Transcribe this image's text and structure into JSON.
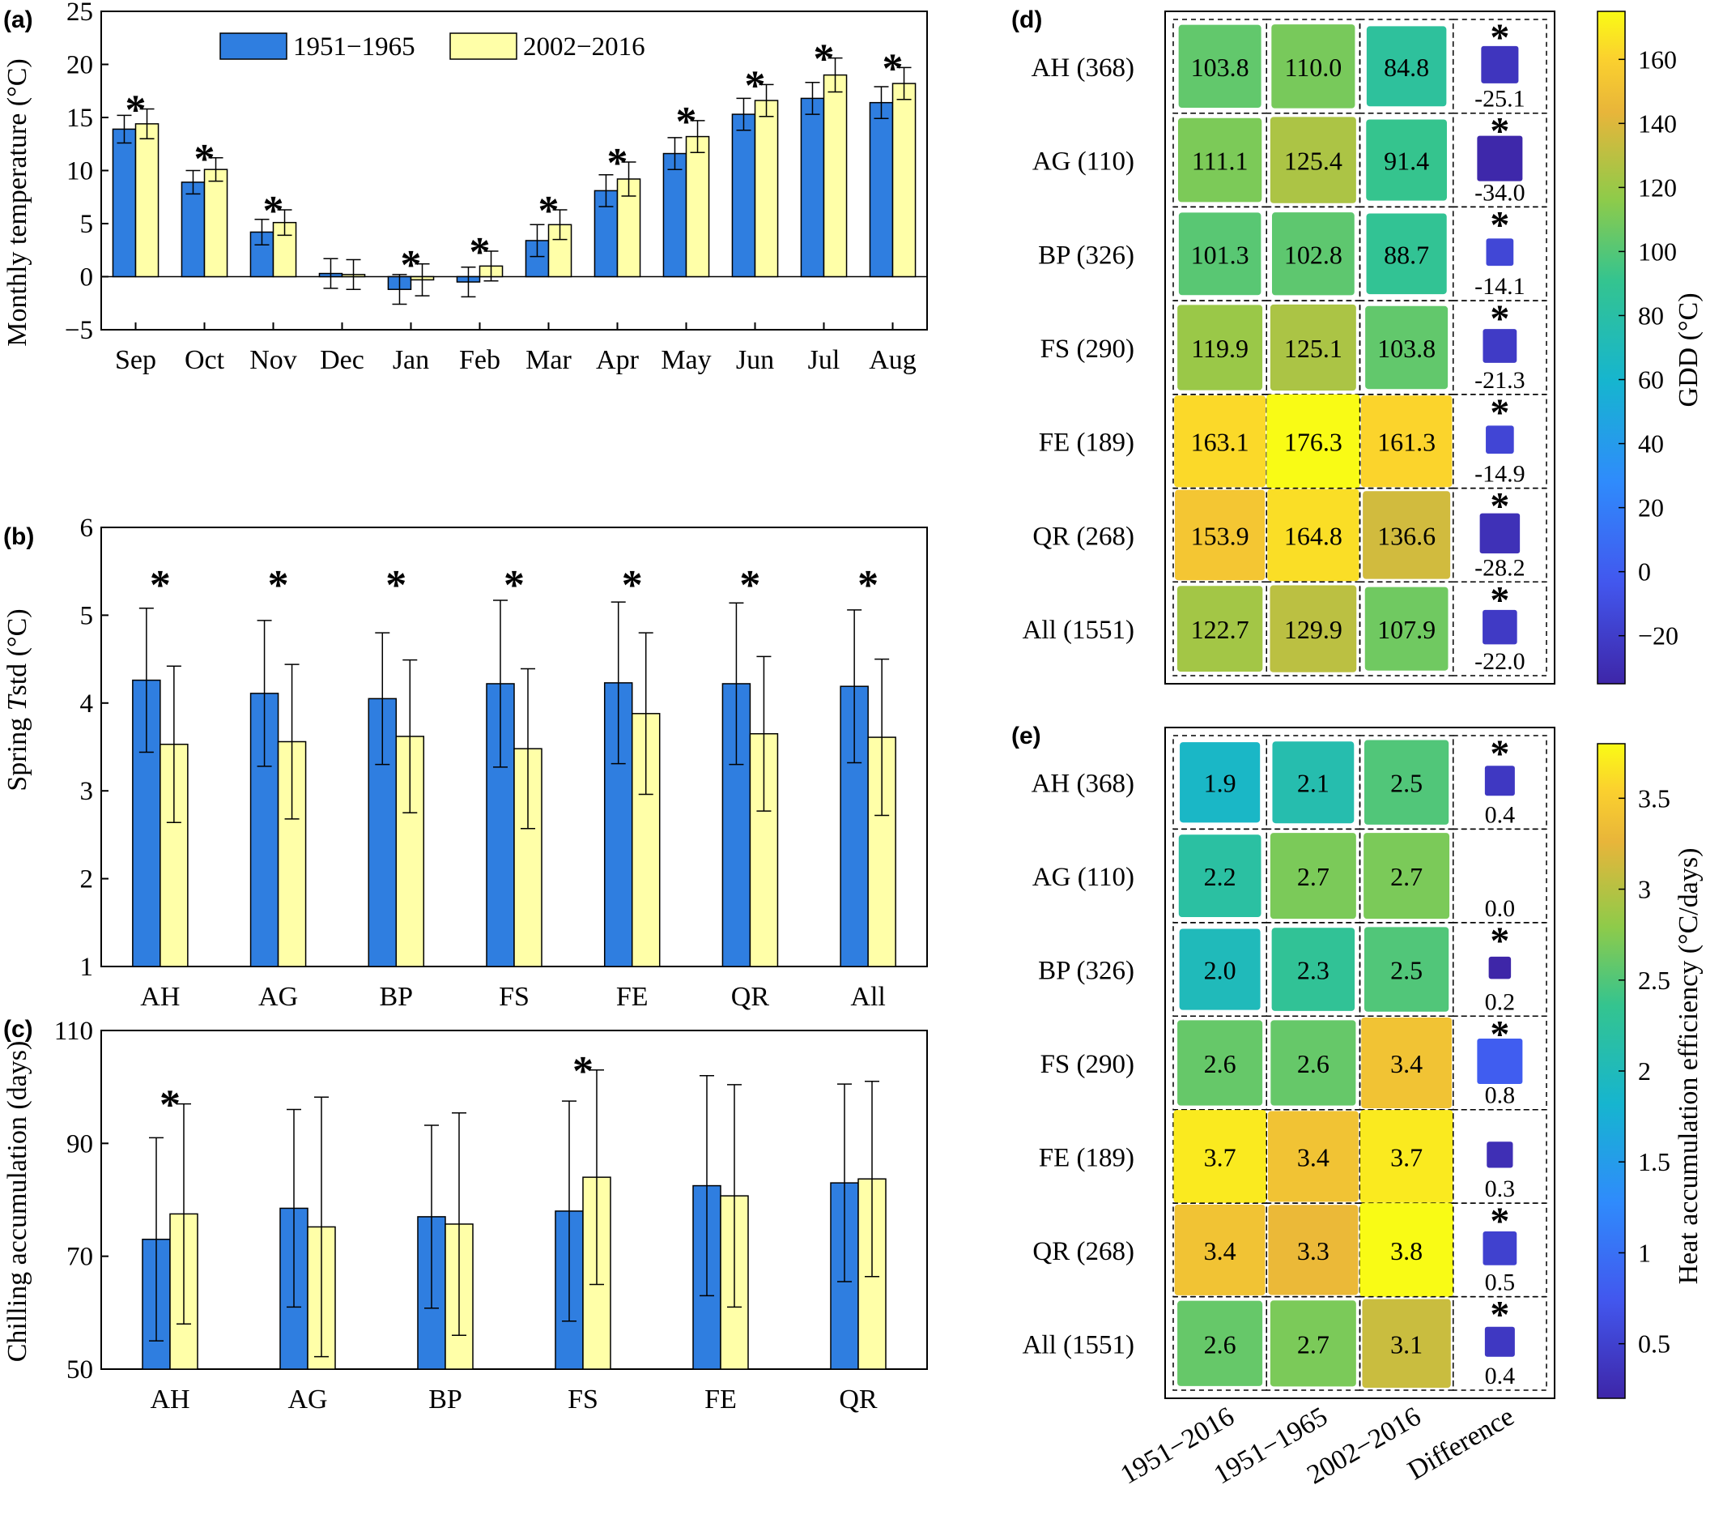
{
  "legend": {
    "series": [
      "1951−1965",
      "2002−2016"
    ],
    "colors": [
      "#2f7ee0",
      "#ffffa8"
    ]
  },
  "chart_data": [
    {
      "panel_label": "(a)",
      "type": "bar",
      "categories": [
        "Sep",
        "Oct",
        "Nov",
        "Dec",
        "Jan",
        "Feb",
        "Mar",
        "Apr",
        "May",
        "Jun",
        "Jul",
        "Aug"
      ],
      "series": [
        {
          "name": "1951−1965",
          "values": [
            13.9,
            8.9,
            4.2,
            0.3,
            -1.2,
            -0.5,
            3.4,
            8.1,
            11.6,
            15.3,
            16.8,
            16.4
          ],
          "err": [
            1.3,
            1.1,
            1.2,
            1.4,
            1.4,
            1.4,
            1.5,
            1.5,
            1.5,
            1.5,
            1.5,
            1.5
          ]
        },
        {
          "name": "2002−2016",
          "values": [
            14.4,
            10.1,
            5.1,
            0.2,
            -0.3,
            1.0,
            4.9,
            9.2,
            13.2,
            16.6,
            19.0,
            18.2
          ],
          "err": [
            1.4,
            1.1,
            1.2,
            1.4,
            1.5,
            1.4,
            1.4,
            1.6,
            1.5,
            1.5,
            1.6,
            1.5
          ]
        }
      ],
      "significant": [
        true,
        true,
        true,
        false,
        true,
        true,
        true,
        true,
        true,
        true,
        true,
        true
      ],
      "ylabel": "Monthly temperature (°C)",
      "ylim": [
        -5,
        25
      ],
      "yticks": [
        -5,
        0,
        5,
        10,
        15,
        20,
        25
      ],
      "ytick_labels": [
        "−5",
        "0",
        "5",
        "10",
        "15",
        "20",
        "25"
      ]
    },
    {
      "panel_label": "(b)",
      "type": "bar",
      "categories": [
        "AH",
        "AG",
        "BP",
        "FS",
        "FE",
        "QR",
        "All"
      ],
      "series": [
        {
          "name": "1951−1965",
          "values": [
            4.26,
            4.11,
            4.05,
            4.22,
            4.23,
            4.22,
            4.19
          ],
          "err": [
            0.82,
            0.83,
            0.75,
            0.95,
            0.92,
            0.92,
            0.87
          ]
        },
        {
          "name": "2002−2016",
          "values": [
            3.53,
            3.56,
            3.62,
            3.48,
            3.88,
            3.65,
            3.61
          ],
          "err": [
            0.89,
            0.88,
            0.87,
            0.91,
            0.92,
            0.88,
            0.89
          ]
        }
      ],
      "significant": [
        true,
        true,
        true,
        true,
        true,
        true,
        true
      ],
      "ylabel_prefix": "Spring ",
      "ylabel_italic": "T",
      "ylabel_suffix": "std (°C)",
      "ylim": [
        1,
        6
      ],
      "yticks": [
        1,
        2,
        3,
        4,
        5,
        6
      ],
      "ytick_labels": [
        "1",
        "2",
        "3",
        "4",
        "5",
        "6"
      ]
    },
    {
      "panel_label": "(c)",
      "type": "bar",
      "categories": [
        "AH",
        "AG",
        "BP",
        "FS",
        "FE",
        "QR"
      ],
      "series": [
        {
          "name": "1951−1965",
          "values": [
            73,
            78.5,
            77,
            78,
            82.5,
            83
          ],
          "err": [
            18,
            17.5,
            16.2,
            19.5,
            19.5,
            17.5
          ]
        },
        {
          "name": "2002−2016",
          "values": [
            77.5,
            75.2,
            75.7,
            84,
            80.7,
            83.7
          ],
          "err": [
            19.5,
            23,
            19.7,
            19,
            19.7,
            17.3
          ]
        }
      ],
      "significant": [
        true,
        false,
        false,
        true,
        false,
        false
      ],
      "ylabel": "Chilling accumulation (days)",
      "ylim": [
        50,
        110
      ],
      "yticks": [
        50,
        70,
        90,
        110
      ],
      "ytick_labels": [
        "50",
        "70",
        "90",
        "110"
      ]
    },
    {
      "panel_label": "(d)",
      "type": "heatmap",
      "rows": [
        "AH (368)",
        "AG (110)",
        "BP (326)",
        "FS (290)",
        "FE (189)",
        "QR (268)",
        "All (1551)"
      ],
      "columns": [
        "1951−2016",
        "1951−1965",
        "2002−2016",
        "Difference"
      ],
      "values": [
        [
          103.8,
          110.0,
          84.8,
          -25.1
        ],
        [
          111.1,
          125.4,
          91.4,
          -34.0
        ],
        [
          101.3,
          102.8,
          88.7,
          -14.1
        ],
        [
          119.9,
          125.1,
          103.8,
          -21.3
        ],
        [
          163.1,
          176.3,
          161.3,
          -14.9
        ],
        [
          153.9,
          164.8,
          136.6,
          -28.2
        ],
        [
          122.7,
          129.9,
          107.9,
          -22.0
        ]
      ],
      "labels": [
        [
          "103.8",
          "110.0",
          "84.8",
          "-25.1"
        ],
        [
          "111.1",
          "125.4",
          "91.4",
          "-34.0"
        ],
        [
          "101.3",
          "102.8",
          "88.7",
          "-14.1"
        ],
        [
          "119.9",
          "125.1",
          "103.8",
          "-21.3"
        ],
        [
          "163.1",
          "176.3",
          "161.3",
          "-14.9"
        ],
        [
          "153.9",
          "164.8",
          "136.6",
          "-28.2"
        ],
        [
          "122.7",
          "129.9",
          "107.9",
          "-22.0"
        ]
      ],
      "significant": [
        true,
        true,
        true,
        true,
        true,
        true,
        true
      ],
      "colorbar": {
        "label": "GDD (°C)",
        "range": [
          -35,
          175
        ],
        "ticks": [
          -20,
          0,
          20,
          40,
          60,
          80,
          100,
          120,
          140,
          160
        ],
        "tick_labels": [
          "−20",
          "0",
          "20",
          "40",
          "60",
          "80",
          "100",
          "120",
          "140",
          "160"
        ]
      }
    },
    {
      "panel_label": "(e)",
      "type": "heatmap",
      "rows": [
        "AH (368)",
        "AG (110)",
        "BP (326)",
        "FS (290)",
        "FE (189)",
        "QR (268)",
        "All (1551)"
      ],
      "columns": [
        "1951−2016",
        "1951−1965",
        "2002−2016",
        "Difference"
      ],
      "values": [
        [
          1.9,
          2.1,
          2.5,
          0.4
        ],
        [
          2.2,
          2.7,
          2.7,
          0.0
        ],
        [
          2.0,
          2.3,
          2.5,
          0.2
        ],
        [
          2.6,
          2.6,
          3.4,
          0.8
        ],
        [
          3.7,
          3.4,
          3.7,
          0.3
        ],
        [
          3.4,
          3.3,
          3.8,
          0.5
        ],
        [
          2.6,
          2.7,
          3.1,
          0.4
        ]
      ],
      "labels": [
        [
          "1.9",
          "2.1",
          "2.5",
          "0.4"
        ],
        [
          "2.2",
          "2.7",
          "2.7",
          "0.0"
        ],
        [
          "2.0",
          "2.3",
          "2.5",
          "0.2"
        ],
        [
          "2.6",
          "2.6",
          "3.4",
          "0.8"
        ],
        [
          "3.7",
          "3.4",
          "3.7",
          "0.3"
        ],
        [
          "3.4",
          "3.3",
          "3.8",
          "0.5"
        ],
        [
          "2.6",
          "2.7",
          "3.1",
          "0.4"
        ]
      ],
      "significant": [
        true,
        false,
        true,
        true,
        false,
        true,
        true
      ],
      "colorbar": {
        "label": "Heat accumulation efficiency (°C/days)",
        "range": [
          0.2,
          3.8
        ],
        "ticks": [
          0.5,
          1,
          1.5,
          2,
          2.5,
          3,
          3.5
        ],
        "tick_labels": [
          "0.5",
          "1",
          "1.5",
          "2",
          "2.5",
          "3",
          "3.5"
        ]
      }
    }
  ]
}
